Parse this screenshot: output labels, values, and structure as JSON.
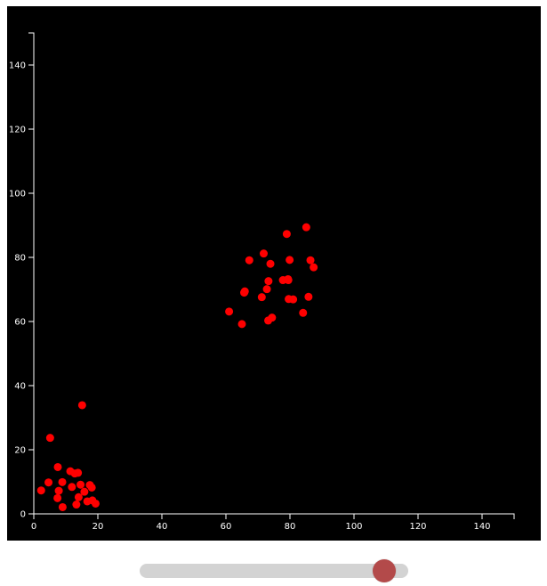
{
  "chart_data": {
    "type": "scatter",
    "title": "",
    "xlabel": "",
    "ylabel": "",
    "xlim": [
      0,
      150
    ],
    "ylim": [
      0,
      150
    ],
    "x_ticks": [
      0,
      20,
      40,
      60,
      80,
      100,
      120,
      140
    ],
    "y_ticks": [
      0,
      20,
      40,
      60,
      80,
      100,
      120,
      140
    ],
    "grid": false,
    "series": [
      {
        "name": "points",
        "color": "#ff0000",
        "points": [
          [
            2.3,
            7.3
          ],
          [
            4.6,
            9.8
          ],
          [
            5.1,
            23.7
          ],
          [
            7.5,
            14.6
          ],
          [
            7.8,
            7.2
          ],
          [
            7.4,
            4.9
          ],
          [
            8.9,
            9.9
          ],
          [
            9.0,
            2.1
          ],
          [
            11.4,
            13.3
          ],
          [
            11.9,
            8.4
          ],
          [
            12.8,
            12.6
          ],
          [
            13.8,
            12.8
          ],
          [
            13.3,
            2.9
          ],
          [
            14.0,
            5.2
          ],
          [
            14.6,
            9.1
          ],
          [
            15.1,
            33.9
          ],
          [
            15.8,
            6.9
          ],
          [
            16.7,
            3.9
          ],
          [
            17.5,
            9.0
          ],
          [
            18.1,
            8.2
          ],
          [
            18.3,
            4.2
          ],
          [
            19.3,
            3.2
          ],
          [
            61.0,
            63.1
          ],
          [
            65.0,
            59.2
          ],
          [
            65.7,
            69.0
          ],
          [
            65.9,
            69.4
          ],
          [
            67.3,
            79.1
          ],
          [
            71.2,
            67.6
          ],
          [
            71.8,
            81.2
          ],
          [
            72.8,
            70.1
          ],
          [
            73.3,
            72.6
          ],
          [
            73.2,
            60.3
          ],
          [
            73.9,
            78.0
          ],
          [
            74.4,
            61.2
          ],
          [
            77.8,
            72.9
          ],
          [
            79.0,
            87.3
          ],
          [
            79.4,
            73.2
          ],
          [
            79.5,
            72.9
          ],
          [
            79.6,
            67.0
          ],
          [
            79.9,
            79.2
          ],
          [
            81.0,
            66.9
          ],
          [
            84.1,
            62.7
          ],
          [
            85.1,
            89.4
          ],
          [
            85.8,
            67.7
          ],
          [
            86.4,
            79.1
          ],
          [
            87.4,
            76.9
          ]
        ]
      }
    ]
  },
  "slider": {
    "value_fraction": 0.95,
    "track_color": "#d3d3d3",
    "thumb_color": "#b34a4a"
  }
}
